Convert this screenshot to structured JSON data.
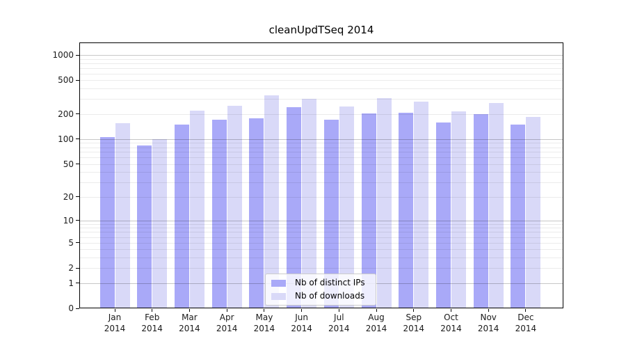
{
  "chart_data": {
    "type": "bar",
    "title": "cleanUpdTSeq 2014",
    "months": [
      "Jan",
      "Feb",
      "Mar",
      "Apr",
      "May",
      "Jun",
      "Jul",
      "Aug",
      "Sep",
      "Oct",
      "Nov",
      "Dec"
    ],
    "year_label": "2014",
    "categories": [
      "Jan 2014",
      "Feb 2014",
      "Mar 2014",
      "Apr 2014",
      "May 2014",
      "Jun 2014",
      "Jul 2014",
      "Aug 2014",
      "Sep 2014",
      "Oct 2014",
      "Nov 2014",
      "Dec 2014"
    ],
    "series": [
      {
        "name": "Nb of distinct IPs",
        "color": "#a9a9f8",
        "values": [
          106,
          84,
          150,
          170,
          176,
          240,
          172,
          203,
          208,
          158,
          197,
          149
        ]
      },
      {
        "name": "Nb of downloads",
        "color": "#d9d9f8",
        "values": [
          155,
          100,
          218,
          248,
          330,
          302,
          244,
          310,
          278,
          214,
          267,
          183
        ]
      }
    ],
    "xlabel": "",
    "ylabel": "",
    "yscale": "log1p",
    "ytick_values": [
      0,
      1,
      2,
      5,
      10,
      20,
      50,
      100,
      200,
      500,
      1000
    ],
    "ylim": [
      0,
      1400
    ],
    "grid": true,
    "grid_minor": true,
    "legend_position": "inside-lower-center"
  }
}
